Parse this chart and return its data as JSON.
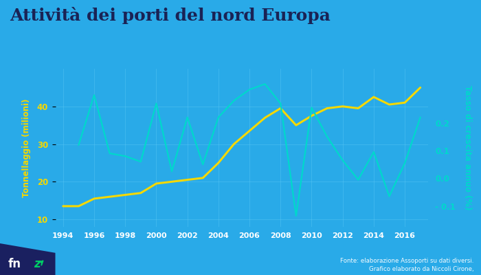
{
  "title": "Attività dei porti del nord Europa",
  "background_color": "#29aae8",
  "plot_bg_color": "#29aae8",
  "title_color": "#1a2355",
  "ylabel_left": "Tonnellaggio (milioni)",
  "ylabel_right": "Tasso di crescita annuo (%)",
  "ylabel_left_color": "#f5d800",
  "ylabel_right_color": "#00d8cc",
  "xtick_bg_color": "#2090cc",
  "grid_color": "#5bc8f5",
  "footnote": "Fonte: elaborazione Assoporti su dati diversi.\nGrafico elaborato da Niccoli Cirone,",
  "years": [
    1994,
    1995,
    1996,
    1997,
    1998,
    1999,
    2000,
    2001,
    2002,
    2003,
    2004,
    2005,
    2006,
    2007,
    2008,
    2009,
    2010,
    2011,
    2012,
    2013,
    2014,
    2015,
    2016,
    2017
  ],
  "tonnellaggio": [
    13.5,
    13.5,
    15.5,
    16.0,
    16.5,
    17.0,
    19.5,
    20.0,
    20.5,
    21.0,
    25.0,
    30.0,
    33.5,
    37.0,
    39.5,
    35.0,
    37.5,
    39.5,
    40.0,
    39.5,
    42.5,
    40.5,
    41.0,
    45.0
  ],
  "tonnellaggio_color": "#f5d800",
  "tonnellaggio_linewidth": 2.2,
  "tasso": [
    null,
    0.12,
    0.3,
    0.09,
    0.08,
    0.06,
    0.27,
    0.025,
    0.22,
    0.05,
    0.22,
    0.28,
    0.32,
    0.34,
    0.27,
    -0.135,
    0.255,
    0.15,
    0.065,
    -0.005,
    0.095,
    -0.065,
    0.055,
    0.22
  ],
  "tasso_color": "#00d8cc",
  "tasso_linewidth": 1.6,
  "ylim_left": [
    8,
    50
  ],
  "ylim_right": [
    -0.175,
    0.395
  ],
  "yticks_left": [
    10,
    20,
    30,
    40
  ],
  "yticks_right": [
    -0.1,
    0.0,
    0.1,
    0.2
  ],
  "xtick_labels": [
    "1994",
    "1996",
    "1998",
    "2000",
    "2002",
    "2004",
    "2006",
    "2008",
    "2010",
    "2012",
    "2014",
    "2016"
  ],
  "xtick_positions": [
    1994,
    1996,
    1998,
    2000,
    2002,
    2004,
    2006,
    2008,
    2010,
    2012,
    2014,
    2016
  ],
  "figsize": [
    7.0,
    4.0
  ],
  "dpi": 100
}
